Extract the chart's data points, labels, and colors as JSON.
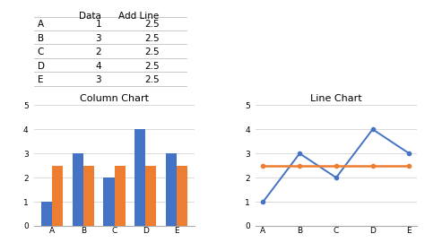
{
  "categories": [
    "A",
    "B",
    "C",
    "D",
    "E"
  ],
  "data_values": [
    1,
    3,
    2,
    4,
    3
  ],
  "add_line_values": [
    2.5,
    2.5,
    2.5,
    2.5,
    2.5
  ],
  "table_rows": [
    [
      "A",
      "1",
      "2.5"
    ],
    [
      "B",
      "3",
      "2.5"
    ],
    [
      "C",
      "2",
      "2.5"
    ],
    [
      "D",
      "4",
      "2.5"
    ],
    [
      "E",
      "3",
      "2.5"
    ]
  ],
  "blue_color": "#4472C4",
  "orange_color": "#ED7D31",
  "col_chart_title": "Column Chart",
  "line_chart_title": "Line Chart",
  "ylim": [
    0,
    5
  ],
  "yticks": [
    0,
    1,
    2,
    3,
    4,
    5
  ],
  "bg_color": "#FFFFFF",
  "grid_color": "#D9D9D9",
  "table_line_color": "#BFBFBF",
  "title_fontsize": 8,
  "axis_fontsize": 6.5,
  "table_fontsize": 7.5
}
